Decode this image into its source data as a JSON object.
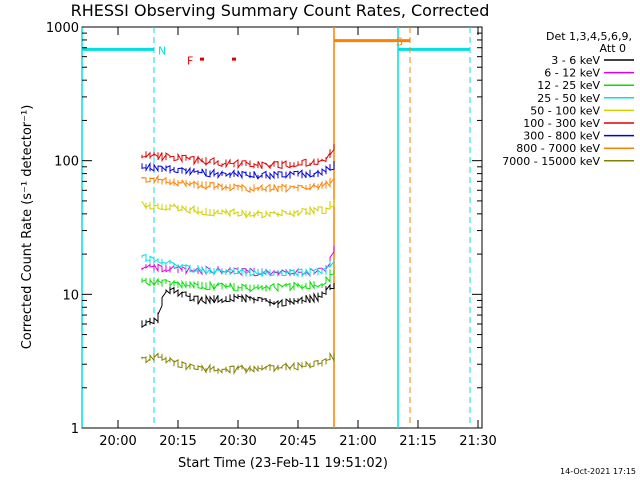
{
  "chart_data": {
    "type": "line",
    "title": "RHESSI Observing Summary Count Rates, Corrected",
    "xlabel": "Start Time (23-Feb-11 19:51:02)",
    "ylabel": "Corrected Count Rate (s⁻¹ detector⁻¹)",
    "y_scale": "log",
    "ylim": [
      1,
      1000
    ],
    "xlim": [
      "19:51",
      "21:31"
    ],
    "x_ticks": [
      "20:00",
      "20:15",
      "20:30",
      "20:45",
      "21:00",
      "21:15",
      "21:30"
    ],
    "y_ticks": [
      "1",
      "10",
      "100",
      "1000"
    ],
    "detectors_label": "Det 1,3,4,5,6,9,",
    "attenuator_label": "Att 0",
    "footer_date": "14-Oct-2021 17:15",
    "series": [
      {
        "name": "3 - 6 keV",
        "color": "#000000",
        "start": "20:06",
        "end": "20:54",
        "points": [
          [
            "20:06",
            6
          ],
          [
            "20:10",
            6.5
          ],
          [
            "20:12",
            11
          ],
          [
            "20:20",
            9
          ],
          [
            "20:30",
            9.5
          ],
          [
            "20:40",
            8.5
          ],
          [
            "20:50",
            9.5
          ],
          [
            "20:54",
            12
          ]
        ]
      },
      {
        "name": "6 - 12 keV",
        "color": "#e000e0",
        "start": "20:06",
        "end": "20:54",
        "points": [
          [
            "20:06",
            16
          ],
          [
            "20:15",
            15.5
          ],
          [
            "20:25",
            15
          ],
          [
            "20:35",
            14.8
          ],
          [
            "20:45",
            14.5
          ],
          [
            "20:52",
            15
          ],
          [
            "20:54",
            22
          ]
        ]
      },
      {
        "name": "12 - 25 keV",
        "color": "#00e000",
        "start": "20:06",
        "end": "20:54",
        "points": [
          [
            "20:06",
            12.5
          ],
          [
            "20:15",
            12
          ],
          [
            "20:25",
            11.5
          ],
          [
            "20:35",
            11.2
          ],
          [
            "20:45",
            11.5
          ],
          [
            "20:52",
            12
          ],
          [
            "20:54",
            16
          ]
        ]
      },
      {
        "name": "25 - 50 keV",
        "color": "#00e0e0",
        "start": "20:06",
        "end": "20:54",
        "points": [
          [
            "20:06",
            19
          ],
          [
            "20:15",
            16
          ],
          [
            "20:25",
            15
          ],
          [
            "20:35",
            14.5
          ],
          [
            "20:45",
            14.5
          ],
          [
            "20:52",
            15
          ],
          [
            "20:54",
            18
          ]
        ]
      },
      {
        "name": "50 - 100 keV",
        "color": "#d0d000",
        "start": "20:06",
        "end": "20:54",
        "points": [
          [
            "20:06",
            47
          ],
          [
            "20:15",
            44
          ],
          [
            "20:25",
            41
          ],
          [
            "20:35",
            40
          ],
          [
            "20:45",
            41
          ],
          [
            "20:52",
            43
          ],
          [
            "20:54",
            50
          ]
        ]
      },
      {
        "name": "100 - 300 keV",
        "color": "#e00000",
        "start": "20:06",
        "end": "20:54",
        "points": [
          [
            "20:06",
            112
          ],
          [
            "20:15",
            105
          ],
          [
            "20:25",
            97
          ],
          [
            "20:35",
            93
          ],
          [
            "20:45",
            95
          ],
          [
            "20:52",
            102
          ],
          [
            "20:54",
            125
          ]
        ]
      },
      {
        "name": "300 - 800 keV",
        "color": "#0000e0",
        "start": "20:06",
        "end": "20:54",
        "points": [
          [
            "20:06",
            90
          ],
          [
            "20:15",
            85
          ],
          [
            "20:25",
            80
          ],
          [
            "20:35",
            78
          ],
          [
            "20:45",
            79
          ],
          [
            "20:52",
            82
          ],
          [
            "20:54",
            95
          ]
        ]
      },
      {
        "name": "800 - 7000 keV",
        "color": "#ff8000",
        "start": "20:06",
        "end": "20:54",
        "points": [
          [
            "20:06",
            74
          ],
          [
            "20:15",
            69
          ],
          [
            "20:25",
            64
          ],
          [
            "20:35",
            62
          ],
          [
            "20:45",
            63
          ],
          [
            "20:52",
            66
          ],
          [
            "20:54",
            75
          ]
        ]
      },
      {
        "name": "7000 - 15000 keV",
        "color": "#808000",
        "start": "20:06",
        "end": "20:54",
        "points": [
          [
            "20:06",
            3.2
          ],
          [
            "20:10",
            3.5
          ],
          [
            "20:15",
            3
          ],
          [
            "20:25",
            2.7
          ],
          [
            "20:35",
            2.8
          ],
          [
            "20:45",
            2.9
          ],
          [
            "20:52",
            3.1
          ],
          [
            "20:54",
            3.5
          ]
        ]
      }
    ],
    "flags": [
      {
        "label": "N",
        "color": "#00e0e0",
        "segments": [
          [
            "19:51",
            "20:09"
          ],
          [
            "21:10",
            "21:28"
          ]
        ],
        "level": 680,
        "dashed_lines": [
          "20:09",
          "21:28"
        ],
        "solid_lines": [
          "19:51",
          "21:10"
        ]
      },
      {
        "label": "S",
        "color": "#ff8000",
        "segments": [
          [
            "20:54",
            "21:13"
          ]
        ],
        "level": 790,
        "solid_lines": [
          "20:54"
        ],
        "dashed_lines": [
          "21:13"
        ]
      },
      {
        "label": "F",
        "color": "#e00000",
        "markers": [
          "20:21",
          "20:29"
        ],
        "level": 570
      }
    ]
  }
}
